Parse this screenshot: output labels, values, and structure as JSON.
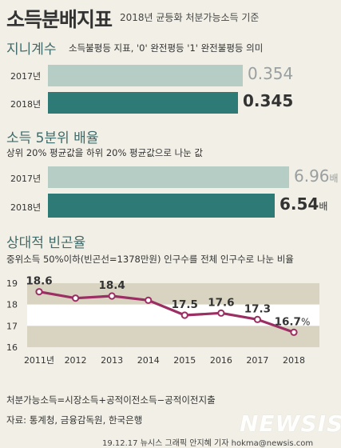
{
  "title": "소득분배지표",
  "subtitle": "2018년 균등화 처분가능소득 기준",
  "gini": {
    "title": "지니계수",
    "desc": "소득불평등 지표, '0' 완전평등 '1' 완전불평등 의미",
    "rows": [
      {
        "year": "2017년",
        "label": "0.354",
        "value": 0.354
      },
      {
        "year": "2018년",
        "label": "0.345",
        "value": 0.345
      }
    ]
  },
  "quintile": {
    "title": "소득 5분위 배율",
    "desc": "상위 20% 평균값을 하위 20% 평균값으로 나눈 값",
    "unit": "배",
    "rows": [
      {
        "year": "2017년",
        "label": "6.96",
        "value": 6.96
      },
      {
        "year": "2018년",
        "label": "6.54",
        "value": 6.54
      }
    ]
  },
  "poverty": {
    "title": "상대적 빈곤율",
    "desc": "중위소득 50%이하(빈곤선=1378만원) 인구수를 전체 인구수로 나눈 비율"
  },
  "colors": {
    "bar_2017": "#b5cdc4",
    "bar_2018": "#2e7a76",
    "line": "#9b2f63",
    "band": "#d9d4c1",
    "section": "#3f6b6a"
  },
  "chart_data": {
    "type": "line",
    "x": [
      "2011년",
      "2012",
      "2013",
      "2014",
      "2015",
      "2016",
      "2017",
      "2018"
    ],
    "y": [
      18.6,
      18.3,
      18.4,
      18.2,
      17.5,
      17.6,
      17.3,
      16.7
    ],
    "data_labels": [
      "18.6",
      "",
      "18.4",
      "",
      "17.5",
      "17.6",
      "17.3",
      "16.7"
    ],
    "last_suffix": "%",
    "ylim": [
      16,
      19
    ],
    "yticks": [
      "16",
      "17",
      "18",
      "19"
    ],
    "grid": true
  },
  "footnote": "처분가능소득=시장소득+공적이전소득−공적이전지출",
  "source": "자료: 통계청, 금융감독원, 한국은행",
  "credit": "19.12.17 뉴시스 그래픽 안지혜 기자 hokma@newsis.com",
  "logo": "NEWSIS"
}
